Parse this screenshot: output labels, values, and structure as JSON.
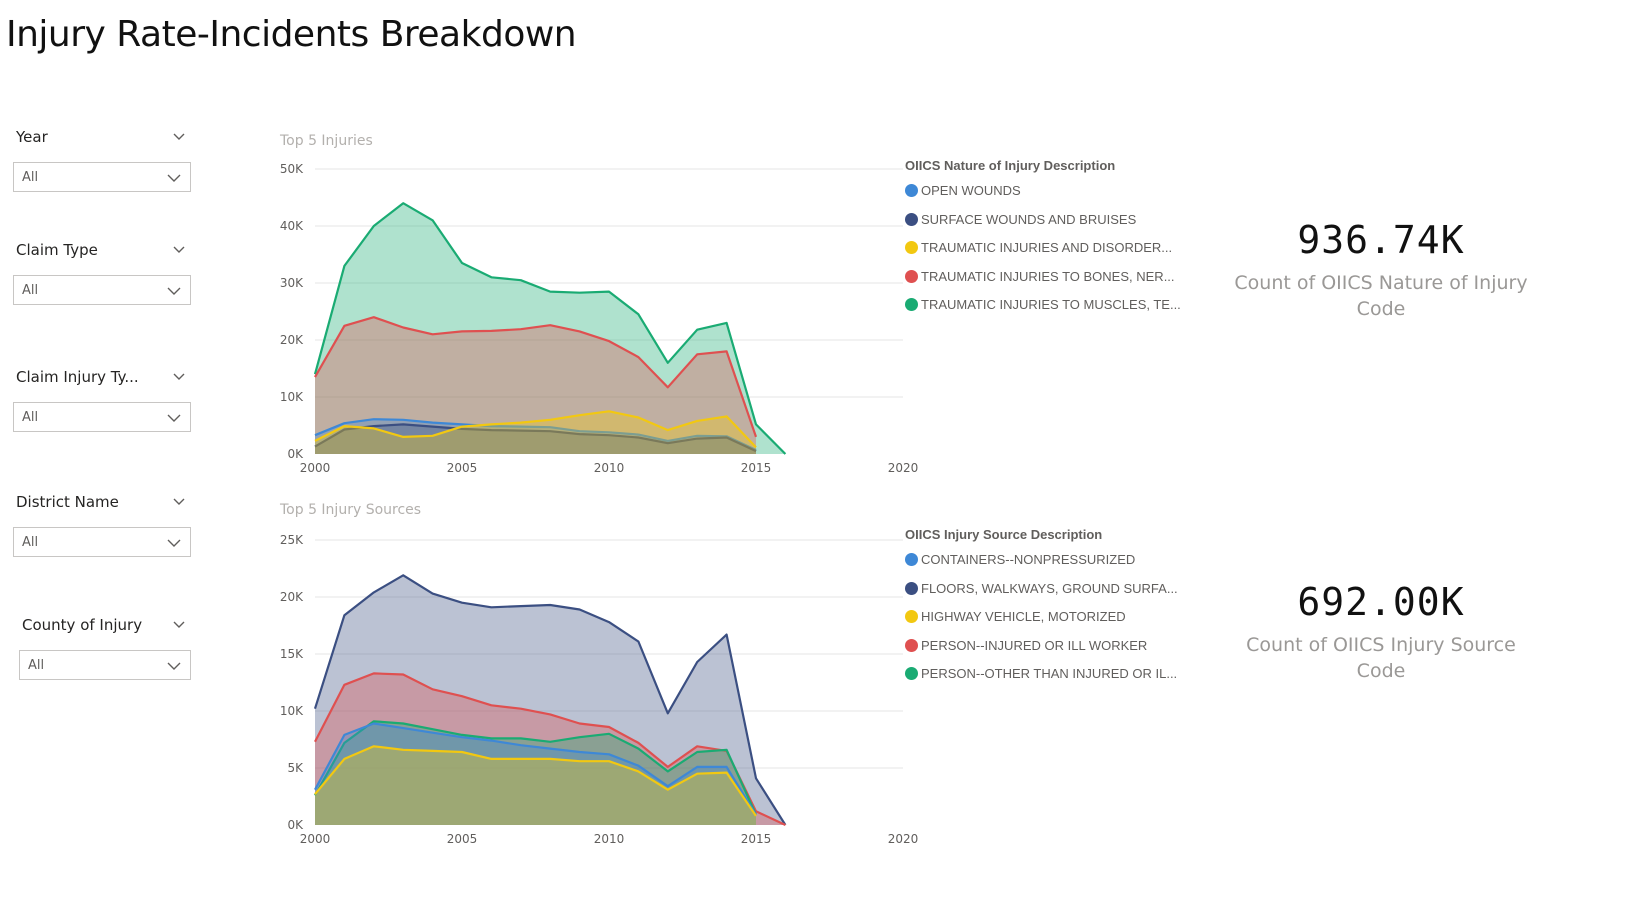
{
  "page": {
    "title": "Injury Rate-Incidents Breakdown"
  },
  "slicers": [
    {
      "label": "Year",
      "value": "All"
    },
    {
      "label": "Claim Type",
      "value": "All"
    },
    {
      "label": "Claim Injury Ty...",
      "value": "All"
    },
    {
      "label": "District Name",
      "value": "All"
    },
    {
      "label": "County of Injury",
      "value": "All"
    }
  ],
  "chart_data": [
    {
      "type": "area",
      "title": "Top 5 Injuries",
      "x": [
        2000,
        2001,
        2002,
        2003,
        2004,
        2005,
        2006,
        2007,
        2008,
        2009,
        2010,
        2011,
        2012,
        2013,
        2014,
        2015,
        2016
      ],
      "xlim": [
        2000,
        2020
      ],
      "xticks": [
        2000,
        2005,
        2010,
        2015,
        2020
      ],
      "ylim": [
        0,
        50000
      ],
      "yticks": [
        0,
        10000,
        20000,
        30000,
        40000,
        50000
      ],
      "ytick_labels": [
        "0K",
        "10K",
        "20K",
        "30K",
        "40K",
        "50K"
      ],
      "grid": true,
      "legend_title": "OIICS Nature of Injury Description",
      "legend_position": "right",
      "series": [
        {
          "name": "TRAUMATIC INJURIES TO MUSCLES, TE...",
          "color": "#1AAB73",
          "values": [
            14000,
            33000,
            40000,
            44000,
            41000,
            33500,
            31000,
            30500,
            28500,
            28300,
            28500,
            24500,
            16000,
            21800,
            23000,
            5200,
            0
          ]
        },
        {
          "name": "TRAUMATIC INJURIES TO BONES, NER...",
          "color": "#DF5050",
          "values": [
            13500,
            22500,
            24000,
            22200,
            21000,
            21500,
            21600,
            21900,
            22600,
            21500,
            19800,
            17000,
            11700,
            17500,
            18000,
            3000,
            null
          ]
        },
        {
          "name": "OPEN WOUNDS",
          "color": "#3E88D6",
          "values": [
            3300,
            5400,
            6100,
            6000,
            5500,
            5200,
            4900,
            4800,
            4700,
            4000,
            3800,
            3400,
            2300,
            3200,
            3100,
            700,
            null
          ]
        },
        {
          "name": "SURFACE WOUNDS AND BRUISES",
          "color": "#3B4F82",
          "values": [
            1300,
            4300,
            4900,
            5200,
            4800,
            4400,
            4200,
            4100,
            4000,
            3500,
            3300,
            2900,
            1900,
            2700,
            2900,
            500,
            null
          ]
        },
        {
          "name": "TRAUMATIC INJURIES AND DISORDER...",
          "color": "#F2C811",
          "values": [
            2300,
            4900,
            4500,
            3000,
            3200,
            4800,
            5200,
            5500,
            6000,
            6800,
            7500,
            6400,
            4200,
            5800,
            6600,
            1200,
            null
          ]
        }
      ]
    },
    {
      "type": "area",
      "title": "Top 5 Injury Sources",
      "x": [
        2000,
        2001,
        2002,
        2003,
        2004,
        2005,
        2006,
        2007,
        2008,
        2009,
        2010,
        2011,
        2012,
        2013,
        2014,
        2015,
        2016
      ],
      "xlim": [
        2000,
        2020
      ],
      "xticks": [
        2000,
        2005,
        2010,
        2015,
        2020
      ],
      "ylim": [
        0,
        25000
      ],
      "yticks": [
        0,
        5000,
        10000,
        15000,
        20000,
        25000
      ],
      "ytick_labels": [
        "0K",
        "5K",
        "10K",
        "15K",
        "20K",
        "25K"
      ],
      "grid": true,
      "legend_title": "OIICS Injury Source Description",
      "legend_position": "right",
      "series": [
        {
          "name": "FLOORS, WALKWAYS, GROUND SURFA...",
          "color": "#3B4F82",
          "values": [
            10200,
            18400,
            20400,
            21900,
            20300,
            19500,
            19100,
            19200,
            19300,
            18900,
            17800,
            16100,
            9800,
            14300,
            16700,
            4100,
            0
          ]
        },
        {
          "name": "PERSON--INJURED OR ILL WORKER",
          "color": "#DF5050",
          "values": [
            7300,
            12300,
            13300,
            13200,
            11900,
            11300,
            10500,
            10200,
            9700,
            8900,
            8600,
            7200,
            5100,
            6900,
            6500,
            1200,
            0
          ]
        },
        {
          "name": "PERSON--OTHER THAN INJURED OR IL...",
          "color": "#1AAB73",
          "values": [
            2600,
            7200,
            9100,
            8900,
            8400,
            7900,
            7600,
            7600,
            7300,
            7700,
            8000,
            6700,
            4700,
            6400,
            6600,
            900,
            null
          ]
        },
        {
          "name": "CONTAINERS--NONPRESSURIZED",
          "color": "#3E88D6",
          "values": [
            3100,
            7900,
            8900,
            8500,
            8100,
            7700,
            7400,
            7000,
            6700,
            6400,
            6200,
            5200,
            3400,
            5100,
            5100,
            900,
            null
          ]
        },
        {
          "name": "HIGHWAY VEHICLE, MOTORIZED",
          "color": "#F2C811",
          "values": [
            2700,
            5800,
            6900,
            6600,
            6500,
            6400,
            5800,
            5800,
            5800,
            5600,
            5600,
            4700,
            3100,
            4500,
            4600,
            800,
            null
          ]
        }
      ]
    }
  ],
  "legends": [
    {
      "title": "OIICS Nature of Injury Description",
      "items": [
        {
          "label": "OPEN WOUNDS",
          "color": "#3E88D6"
        },
        {
          "label": "SURFACE WOUNDS AND BRUISES",
          "color": "#3B4F82"
        },
        {
          "label": "TRAUMATIC INJURIES AND DISORDER...",
          "color": "#F2C811"
        },
        {
          "label": "TRAUMATIC INJURIES TO BONES, NER...",
          "color": "#DF5050"
        },
        {
          "label": "TRAUMATIC INJURIES TO MUSCLES, TE...",
          "color": "#1AAB73"
        }
      ]
    },
    {
      "title": "OIICS Injury Source Description",
      "items": [
        {
          "label": "CONTAINERS--NONPRESSURIZED",
          "color": "#3E88D6"
        },
        {
          "label": "FLOORS, WALKWAYS, GROUND SURFA...",
          "color": "#3B4F82"
        },
        {
          "label": "HIGHWAY VEHICLE, MOTORIZED",
          "color": "#F2C811"
        },
        {
          "label": "PERSON--INJURED OR ILL WORKER",
          "color": "#DF5050"
        },
        {
          "label": "PERSON--OTHER THAN INJURED OR IL...",
          "color": "#1AAB73"
        }
      ]
    }
  ],
  "cards": [
    {
      "value": "936.74K",
      "label": "Count of OIICS Nature of Injury Code"
    },
    {
      "value": "692.00K",
      "label": "Count of OIICS Injury Source Code"
    }
  ]
}
